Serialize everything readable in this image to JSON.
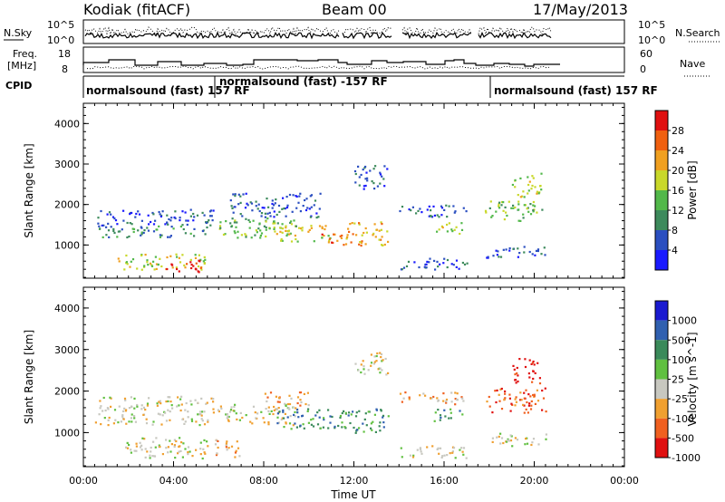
{
  "header": {
    "station": "Kodiak (fitACF)",
    "beam": "Beam 00",
    "date": "17/May/2013"
  },
  "top_panels": {
    "nsky_label": "N.Sky",
    "nsky_ticks": [
      "10^5",
      "10^0"
    ],
    "nsearch_label": "N.Search",
    "nsearch_ticks": [
      "10^5",
      "10^0"
    ],
    "freq_label_1": "Freq.",
    "freq_label_2": "[MHz]",
    "freq_ticks": [
      "18",
      "8"
    ],
    "nave_label": "Nave",
    "nave_ticks": [
      "60",
      "0"
    ],
    "cpid_label": "CPID",
    "cpid_segments": [
      {
        "text": "normalsound (fast) 157 RF",
        "start_hour": 0
      },
      {
        "text": "normalsound (fast) -157 RF",
        "start_hour": 5.9
      },
      {
        "text": "normalsound (fast) 157 RF",
        "start_hour": 17.8
      }
    ]
  },
  "chart_data": [
    {
      "type": "heatmap",
      "name": "power",
      "ylabel": "Slant Range [km]",
      "xlabel": "Time UT",
      "x_ticks": [
        "00:00",
        "04:00",
        "08:00",
        "12:00",
        "16:00",
        "20:00",
        "00:00"
      ],
      "y_ticks": [
        "1000",
        "2000",
        "3000",
        "4000"
      ],
      "xlim": [
        0,
        24
      ],
      "ylim": [
        180,
        4500
      ],
      "colorbar": {
        "label": "Power [dB]",
        "ticks": [
          "4",
          "8",
          "12",
          "16",
          "20",
          "24",
          "28"
        ],
        "colors": [
          "#1a1aff",
          "#2b4fc0",
          "#3d8a5c",
          "#52b84a",
          "#c9d82a",
          "#f0a020",
          "#f06010",
          "#e01010"
        ]
      },
      "blobs": [
        {
          "t0": 0.6,
          "t1": 6.0,
          "r0": 1500,
          "r1": 1900,
          "c": 1
        },
        {
          "t0": 0.5,
          "t1": 5.5,
          "r0": 1200,
          "r1": 1500,
          "c": 2
        },
        {
          "t0": 1.5,
          "t1": 5.5,
          "r0": 400,
          "r1": 800,
          "c": 4
        },
        {
          "t0": 3.5,
          "t1": 5.2,
          "r0": 350,
          "r1": 650,
          "c": 7
        },
        {
          "t0": 6.0,
          "t1": 9.5,
          "r0": 1200,
          "r1": 1700,
          "c": 3
        },
        {
          "t0": 6.5,
          "t1": 10.5,
          "r0": 1700,
          "r1": 2300,
          "c": 1
        },
        {
          "t0": 8.0,
          "t1": 11.0,
          "r0": 1100,
          "r1": 1500,
          "c": 4
        },
        {
          "t0": 10.5,
          "t1": 11.5,
          "r0": 1000,
          "r1": 1300,
          "c": 6
        },
        {
          "t0": 11.5,
          "t1": 13.5,
          "r0": 1000,
          "r1": 1600,
          "c": 5
        },
        {
          "t0": 12.0,
          "t1": 13.5,
          "r0": 2400,
          "r1": 3000,
          "c": 1
        },
        {
          "t0": 14.0,
          "t1": 17.0,
          "r0": 1700,
          "r1": 2000,
          "c": 1
        },
        {
          "t0": 15.5,
          "t1": 16.8,
          "r0": 1300,
          "r1": 1600,
          "c": 4
        },
        {
          "t0": 14.0,
          "t1": 17.0,
          "r0": 400,
          "r1": 700,
          "c": 1
        },
        {
          "t0": 17.8,
          "t1": 20.5,
          "r0": 1600,
          "r1": 2100,
          "c": 3
        },
        {
          "t0": 19.0,
          "t1": 20.3,
          "r0": 2200,
          "r1": 2800,
          "c": 4
        },
        {
          "t0": 17.8,
          "t1": 20.5,
          "r0": 700,
          "r1": 1000,
          "c": 1
        }
      ]
    },
    {
      "type": "heatmap",
      "name": "velocity",
      "ylabel": "Slant Range [km]",
      "xlabel": "Time UT",
      "x_ticks": [
        "00:00",
        "04:00",
        "08:00",
        "12:00",
        "16:00",
        "20:00",
        "00:00"
      ],
      "y_ticks": [
        "1000",
        "2000",
        "3000",
        "4000"
      ],
      "xlim": [
        0,
        24
      ],
      "ylim": [
        180,
        4500
      ],
      "colorbar": {
        "label": "Velocity [m s^-1]",
        "ticks": [
          "1000",
          "500",
          "100",
          "25",
          "-25",
          "-100",
          "-500",
          "-1000"
        ],
        "colors": [
          "#1a1ad0",
          "#3060b0",
          "#3a8a5a",
          "#60c040",
          "#c8c8c0",
          "#f0a030",
          "#f06020",
          "#e01010"
        ]
      },
      "blobs": [
        {
          "t0": 0.6,
          "t1": 6.0,
          "r0": 1500,
          "r1": 1900,
          "c": 4
        },
        {
          "t0": 0.5,
          "t1": 5.5,
          "r0": 1200,
          "r1": 1500,
          "c": 4
        },
        {
          "t0": 1.5,
          "t1": 5.5,
          "r0": 400,
          "r1": 900,
          "c": 4
        },
        {
          "t0": 5.8,
          "t1": 7.0,
          "r0": 400,
          "r1": 900,
          "c": 5
        },
        {
          "t0": 6.0,
          "t1": 9.5,
          "r0": 1200,
          "r1": 1700,
          "c": 4
        },
        {
          "t0": 8.5,
          "t1": 11.5,
          "r0": 1100,
          "r1": 1600,
          "c": 2
        },
        {
          "t0": 8.0,
          "t1": 10.0,
          "r0": 1600,
          "r1": 2000,
          "c": 5
        },
        {
          "t0": 11.5,
          "t1": 13.5,
          "r0": 1000,
          "r1": 1600,
          "c": 2
        },
        {
          "t0": 12.0,
          "t1": 13.5,
          "r0": 2400,
          "r1": 3000,
          "c": 4
        },
        {
          "t0": 14.0,
          "t1": 17.0,
          "r0": 1700,
          "r1": 2000,
          "c": 5
        },
        {
          "t0": 15.5,
          "t1": 16.8,
          "r0": 1300,
          "r1": 1600,
          "c": 2
        },
        {
          "t0": 14.0,
          "t1": 17.0,
          "r0": 400,
          "r1": 700,
          "c": 4
        },
        {
          "t0": 17.8,
          "t1": 20.5,
          "r0": 1500,
          "r1": 2100,
          "c": 6
        },
        {
          "t0": 19.0,
          "t1": 20.3,
          "r0": 2200,
          "r1": 2800,
          "c": 7
        },
        {
          "t0": 17.8,
          "t1": 20.5,
          "r0": 700,
          "r1": 1000,
          "c": 4
        }
      ]
    }
  ]
}
